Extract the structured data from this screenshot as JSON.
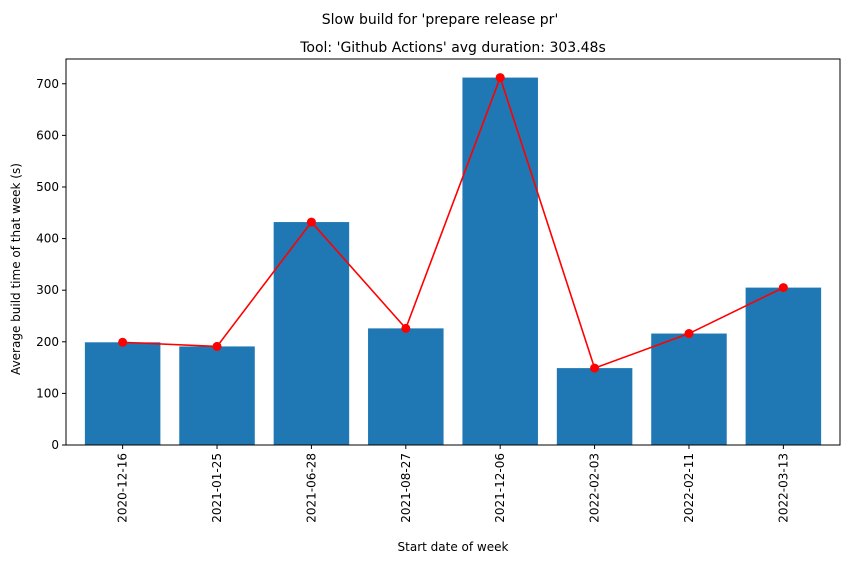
{
  "chart_data": {
    "type": "bar",
    "title": "Slow build for 'prepare release pr'",
    "subtitle": "Tool: 'Github Actions' avg duration: 303.48s",
    "xlabel": "Start date of week",
    "ylabel": "Average build time of that week (s)",
    "categories": [
      "2020-12-16",
      "2021-01-25",
      "2021-06-28",
      "2021-08-27",
      "2021-12-06",
      "2022-02-03",
      "2022-02-11",
      "2022-03-13"
    ],
    "values": [
      199,
      191,
      432,
      226,
      712,
      149,
      216,
      305
    ],
    "ylim": [
      0,
      748
    ],
    "yticks": [
      0,
      100,
      200,
      300,
      400,
      500,
      600,
      700
    ],
    "grid": false,
    "bar_color": "#1f77b4",
    "line_color": "#ff0000",
    "overlay": "line-with-markers"
  }
}
